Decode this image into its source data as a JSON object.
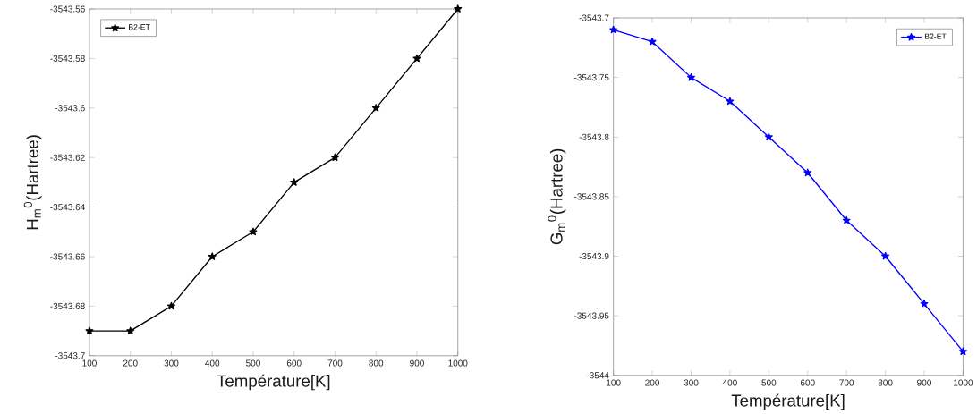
{
  "chart_data": [
    {
      "type": "line",
      "xlabel": "Température[K]",
      "ylabel": "H$_{m}$$^{0}$(Hartree)",
      "x": [
        100,
        200,
        300,
        400,
        500,
        600,
        700,
        800,
        900,
        1000
      ],
      "series": [
        {
          "name": "B2-ET",
          "color": "#000000",
          "values": [
            -3543.69,
            -3543.69,
            -3543.68,
            -3543.66,
            -3543.65,
            -3543.63,
            -3543.62,
            -3543.6,
            -3543.58,
            -3543.56
          ]
        }
      ],
      "xlim": [
        100,
        1000
      ],
      "ylim": [
        -3543.7,
        -3543.56
      ],
      "xticks": [
        100,
        200,
        300,
        400,
        500,
        600,
        700,
        800,
        900,
        1000
      ],
      "yticks": [
        -3543.7,
        -3543.68,
        -3543.66,
        -3543.64,
        -3543.62,
        -3543.6,
        -3543.58,
        -3543.56
      ],
      "legend": "top left",
      "marker": "star",
      "line_style": "solid",
      "grid": false
    },
    {
      "type": "line",
      "xlabel": "Température[K]",
      "ylabel": "G$_{m}$$^{0}$(Hartree)",
      "x": [
        100,
        200,
        300,
        400,
        500,
        600,
        700,
        800,
        900,
        1000
      ],
      "series": [
        {
          "name": "B2-ET",
          "color": "#0000ff",
          "values": [
            -3543.71,
            -3543.72,
            -3543.75,
            -3543.77,
            -3543.8,
            -3543.83,
            -3543.87,
            -3543.9,
            -3543.94,
            -3543.98
          ]
        }
      ],
      "xlim": [
        100,
        1000
      ],
      "ylim": [
        -3544,
        -3543.7
      ],
      "xticks": [
        100,
        200,
        300,
        400,
        500,
        600,
        700,
        800,
        900,
        1000
      ],
      "yticks": [
        -3544,
        -3543.95,
        -3543.9,
        -3543.85,
        -3543.8,
        -3543.75,
        -3543.7
      ],
      "legend": "top right",
      "marker": "star",
      "line_style": "solid",
      "grid": false
    }
  ]
}
